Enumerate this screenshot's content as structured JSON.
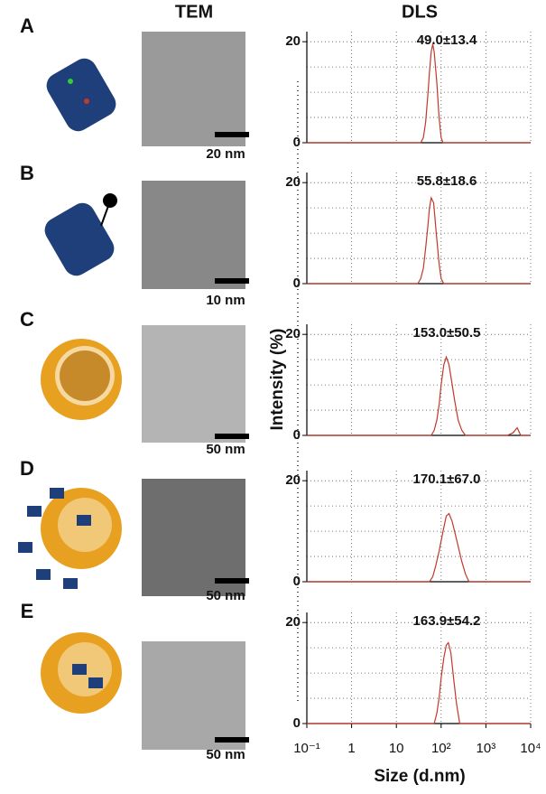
{
  "headers": {
    "tem": "TEM",
    "dls": "DLS"
  },
  "panels": [
    {
      "label": "A",
      "scale_bar": "20 nm"
    },
    {
      "label": "B",
      "scale_bar": "10 nm"
    },
    {
      "label": "C",
      "scale_bar": "50 nm"
    },
    {
      "label": "D",
      "scale_bar": "50 nm"
    },
    {
      "label": "E",
      "scale_bar": "50 nm"
    }
  ],
  "chart_data": [
    {
      "type": "line",
      "annotation": "49.0±13.4",
      "log_x": true,
      "xlim": [
        0.1,
        10000
      ],
      "xticks": [
        0.1,
        1,
        10,
        100,
        1000,
        10000
      ],
      "ylim": [
        0,
        22
      ],
      "yticks": [
        0,
        20
      ],
      "ygrid": [
        5,
        10,
        15,
        20
      ],
      "grid": true,
      "series": [
        {
          "color": "#c0392b",
          "x": [
            0.1,
            35,
            40,
            45,
            50,
            55,
            60,
            65,
            70,
            80,
            90,
            100,
            110,
            10000
          ],
          "values": [
            0,
            0,
            1,
            4,
            9,
            14,
            18,
            19.5,
            18,
            12,
            5,
            1,
            0,
            0
          ]
        }
      ]
    },
    {
      "type": "line",
      "annotation": "55.8±18.6",
      "log_x": true,
      "xlim": [
        0.1,
        10000
      ],
      "xticks": [
        0.1,
        1,
        10,
        100,
        1000,
        10000
      ],
      "ylim": [
        0,
        22
      ],
      "yticks": [
        0,
        20
      ],
      "ygrid": [
        5,
        10,
        15,
        20
      ],
      "grid": true,
      "series": [
        {
          "color": "#c0392b",
          "x": [
            0.1,
            30,
            35,
            40,
            45,
            50,
            55,
            60,
            68,
            78,
            90,
            100,
            115,
            10000
          ],
          "values": [
            0,
            0,
            1,
            3,
            7,
            11,
            15,
            17,
            16,
            10,
            4,
            1,
            0,
            0
          ]
        }
      ]
    },
    {
      "type": "line",
      "annotation": "153.0±50.5",
      "ylabel": "Intensity (%)",
      "log_x": true,
      "xlim": [
        0.1,
        10000
      ],
      "xticks": [
        0.1,
        1,
        10,
        100,
        1000,
        10000
      ],
      "ylim": [
        0,
        22
      ],
      "yticks": [
        0,
        20
      ],
      "ygrid": [
        5,
        10,
        15,
        20
      ],
      "grid": true,
      "series": [
        {
          "color": "#c0392b",
          "x": [
            0.1,
            60,
            70,
            80,
            90,
            100,
            115,
            130,
            150,
            170,
            200,
            240,
            290,
            350,
            3000,
            4000,
            5000,
            6000,
            10000
          ],
          "values": [
            0,
            0,
            1,
            3,
            6,
            10,
            14,
            15.5,
            14,
            11,
            7,
            3,
            1,
            0,
            0,
            0.5,
            1.5,
            0,
            0
          ]
        }
      ]
    },
    {
      "type": "line",
      "annotation": "170.1±67.0",
      "log_x": true,
      "xlim": [
        0.1,
        10000
      ],
      "xticks": [
        0.1,
        1,
        10,
        100,
        1000,
        10000
      ],
      "ylim": [
        0,
        22
      ],
      "yticks": [
        0,
        20
      ],
      "ygrid": [
        5,
        10,
        15,
        20
      ],
      "grid": true,
      "series": [
        {
          "color": "#c0392b",
          "x": [
            0.1,
            55,
            65,
            75,
            90,
            110,
            130,
            150,
            175,
            200,
            240,
            290,
            350,
            420,
            10000
          ],
          "values": [
            0,
            0,
            1,
            3,
            6,
            10,
            13,
            13.5,
            12,
            10,
            7,
            4,
            1.5,
            0,
            0
          ]
        }
      ]
    },
    {
      "type": "line",
      "annotation": "163.9±54.2",
      "xlabel": "Size (d.nm)",
      "log_x": true,
      "xlim": [
        0.1,
        10000
      ],
      "xticks": [
        {
          "value": 0.1,
          "label": "10⁻¹"
        },
        1,
        10,
        {
          "value": 100,
          "label": "10²"
        },
        {
          "value": 1000,
          "label": "10³"
        },
        {
          "value": 10000,
          "label": "10⁴"
        }
      ],
      "ylim": [
        0,
        22
      ],
      "yticks": [
        0,
        20
      ],
      "ygrid": [
        5,
        10,
        15,
        20
      ],
      "grid": true,
      "series": [
        {
          "color": "#c0392b",
          "x": [
            0.1,
            70,
            80,
            90,
            100,
            115,
            130,
            145,
            165,
            190,
            220,
            260,
            10000
          ],
          "values": [
            0,
            0,
            2,
            5,
            9,
            13,
            15.5,
            16,
            14,
            9,
            4,
            0,
            0
          ]
        }
      ]
    }
  ]
}
